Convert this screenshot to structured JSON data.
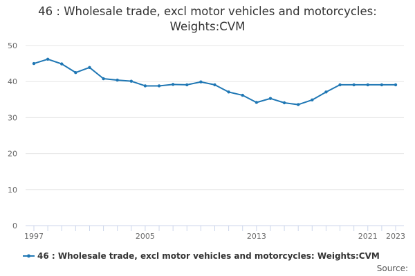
{
  "chart_data": {
    "type": "line",
    "title": "46 : Wholesale trade, excl motor vehicles and motorcycles: Weights:CVM",
    "title_lines": [
      "46 : Wholesale trade, excl motor vehicles and motorcycles:",
      "Weights:CVM"
    ],
    "xlabel": "",
    "ylabel": "",
    "ylim": [
      0,
      50
    ],
    "yticks": [
      0,
      10,
      20,
      30,
      40,
      50
    ],
    "xlim": [
      1997,
      2023
    ],
    "xtick_labels": [
      1997,
      2005,
      2013,
      2021,
      2023
    ],
    "grid": true,
    "legend_position": "bottom-left",
    "series": [
      {
        "name": "46 : Wholesale trade, excl motor vehicles and motorcycles: Weights:CVM",
        "color": "#1f77b4",
        "x": [
          1997,
          1998,
          1999,
          2000,
          2001,
          2002,
          2003,
          2004,
          2005,
          2006,
          2007,
          2008,
          2009,
          2010,
          2011,
          2012,
          2013,
          2014,
          2015,
          2016,
          2017,
          2018,
          2019,
          2020,
          2021,
          2022,
          2023
        ],
        "values": [
          45.0,
          46.2,
          44.9,
          42.5,
          43.9,
          40.8,
          40.4,
          40.1,
          38.8,
          38.8,
          39.2,
          39.1,
          39.9,
          39.1,
          37.1,
          36.2,
          34.2,
          35.3,
          34.1,
          33.6,
          34.9,
          37.1,
          39.1,
          39.1,
          39.1,
          39.1,
          39.1
        ]
      }
    ]
  },
  "source_label": "Source:"
}
